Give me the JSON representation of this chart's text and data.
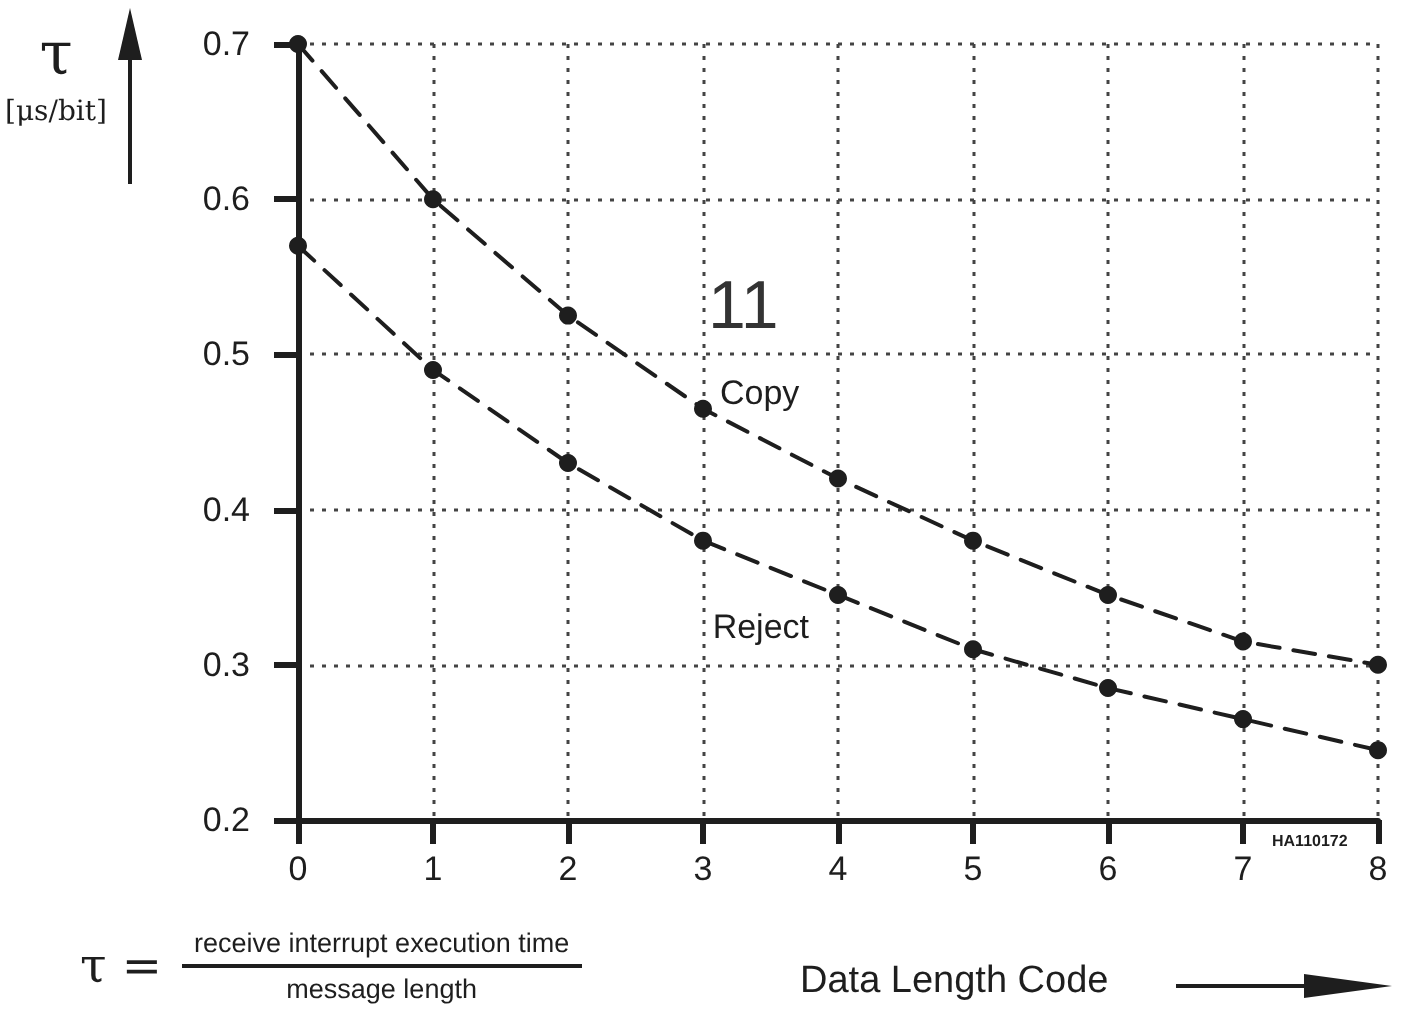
{
  "chart_data": {
    "type": "line",
    "xlabel": "Data Length Code",
    "ylabel": "τ [μs/bit]",
    "x": [
      0,
      1,
      2,
      3,
      4,
      5,
      6,
      7,
      8
    ],
    "series": [
      {
        "name": "Copy",
        "color": "#1e1e1e",
        "values": [
          0.7,
          0.6,
          0.525,
          0.465,
          0.42,
          0.38,
          0.345,
          0.315,
          0.3
        ]
      },
      {
        "name": "Reject",
        "color": "#1e1e1e",
        "values": [
          0.57,
          0.49,
          0.43,
          0.38,
          0.345,
          0.31,
          0.285,
          0.265,
          0.245
        ]
      }
    ],
    "xlim": [
      0,
      8
    ],
    "ylim": [
      0.2,
      0.7
    ],
    "xticks": [
      0,
      1,
      2,
      3,
      4,
      5,
      6,
      7,
      8
    ],
    "yticks": [
      0.2,
      0.3,
      0.4,
      0.5,
      0.6,
      0.7
    ],
    "grid": true,
    "marker": "circle",
    "line_style": "dashed",
    "annotations": [
      "τ =",
      "receive interrupt execution time",
      "message length",
      "11",
      "HA110172"
    ]
  }
}
